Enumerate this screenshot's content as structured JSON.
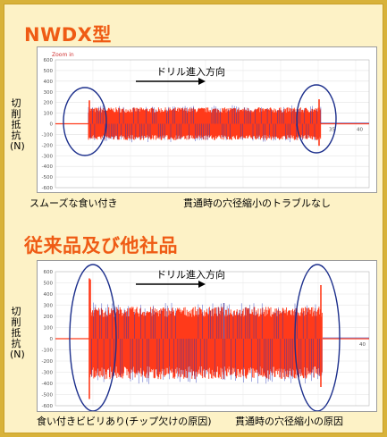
{
  "colors": {
    "accent": "#ef5b14",
    "signal_red": "#ff3a1a",
    "signal_blue": "#2838b8",
    "ellipse": "#1c2f8c",
    "background": "#fdf2c6",
    "border": "#d8b23a"
  },
  "top": {
    "title": "NWDX型",
    "ylabel": "切削抵抗(N)",
    "direction_label": "ドリル進入方向",
    "note_left": "スムーズな食い付き",
    "note_right": "貫通時の穴径縮小のトラブルなし"
  },
  "bottom": {
    "title": "従来品及び他社品",
    "ylabel": "切削抵抗(N)",
    "direction_label": "ドリル進入方向",
    "note_left": "食い付きビビリあり(チップ欠けの原因)",
    "note_right": "貫通時の穴径縮小の原因"
  },
  "chart_data": [
    {
      "type": "area",
      "title": "NWDX型",
      "header_text": "Zoom in",
      "ylabel": "切削抵抗(N)",
      "yticks": [
        600,
        500,
        400,
        300,
        200,
        100,
        0,
        -100,
        -200,
        -300,
        -400,
        -500,
        -600
      ],
      "ylim": [
        -600,
        600
      ],
      "xticks": [
        35,
        40
      ],
      "series": [
        {
          "color": "#ff3a1a",
          "band_upper": 140,
          "band_lower": -140,
          "entry_peak": 220,
          "exit_peak": 230
        },
        {
          "color": "#2838b8",
          "band_upper": 125,
          "band_lower": -125
        }
      ]
    },
    {
      "type": "area",
      "title": "従来品及び他社品",
      "ylabel": "切削抵抗(N)",
      "yticks": [
        600,
        500,
        400,
        300,
        200,
        100,
        0,
        -100,
        -200,
        -300,
        -400,
        -500,
        -600
      ],
      "ylim": [
        -600,
        600
      ],
      "xticks": [
        40
      ],
      "series": [
        {
          "color": "#ff3a1a",
          "band_upper": 260,
          "band_lower": -330,
          "entry_peak": 530,
          "exit_peak": 480,
          "mid_peak": 320
        },
        {
          "color": "#2838b8",
          "band_upper": 220,
          "band_lower": -280
        }
      ]
    }
  ]
}
